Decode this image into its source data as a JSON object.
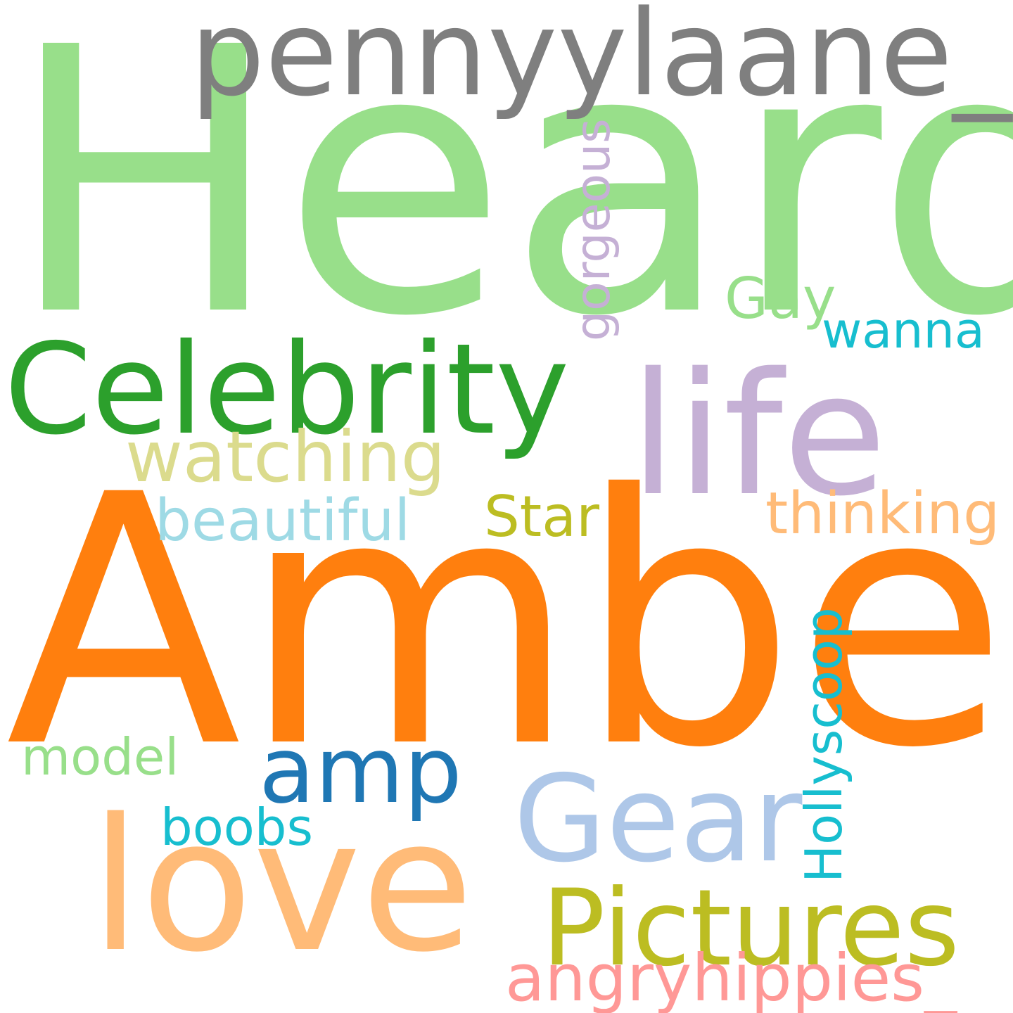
{
  "words": {
    "heard": {
      "text": "Heard",
      "color": "#98df8a"
    },
    "amber": {
      "text": "Amber",
      "color": "#ff7f0e"
    },
    "pennylane": {
      "text": "pennyylaane_",
      "color": "#7f7f7f"
    },
    "celebrity": {
      "text": "Celebrity",
      "color": "#2ca02c"
    },
    "life": {
      "text": "life",
      "color": "#c5b0d5"
    },
    "love": {
      "text": "love",
      "color": "#ffbb78"
    },
    "gear": {
      "text": "Gear",
      "color": "#aec7e8"
    },
    "pictures": {
      "text": "Pictures",
      "color": "#bcbd22"
    },
    "amp": {
      "text": "amp",
      "color": "#1f77b4"
    },
    "watching": {
      "text": "watching",
      "color": "#dbdb8d"
    },
    "gay": {
      "text": "Gay",
      "color": "#98df8a"
    },
    "wanna": {
      "text": "wanna",
      "color": "#17becf"
    },
    "beautiful": {
      "text": "beautiful",
      "color": "#9edae5"
    },
    "star": {
      "text": "Star",
      "color": "#bcbd22"
    },
    "thinking": {
      "text": "thinking",
      "color": "#ffbb78"
    },
    "model": {
      "text": "model",
      "color": "#98df8a"
    },
    "boobs": {
      "text": "boobs",
      "color": "#17becf"
    },
    "angryhippies": {
      "text": "angryhippies_",
      "color": "#ff9896"
    },
    "gorgeous": {
      "text": "gorgeous",
      "color": "#c5b0d5",
      "orientation": "vertical"
    },
    "hollyscoop": {
      "text": "Hollyscoop",
      "color": "#17becf",
      "orientation": "vertical"
    }
  }
}
